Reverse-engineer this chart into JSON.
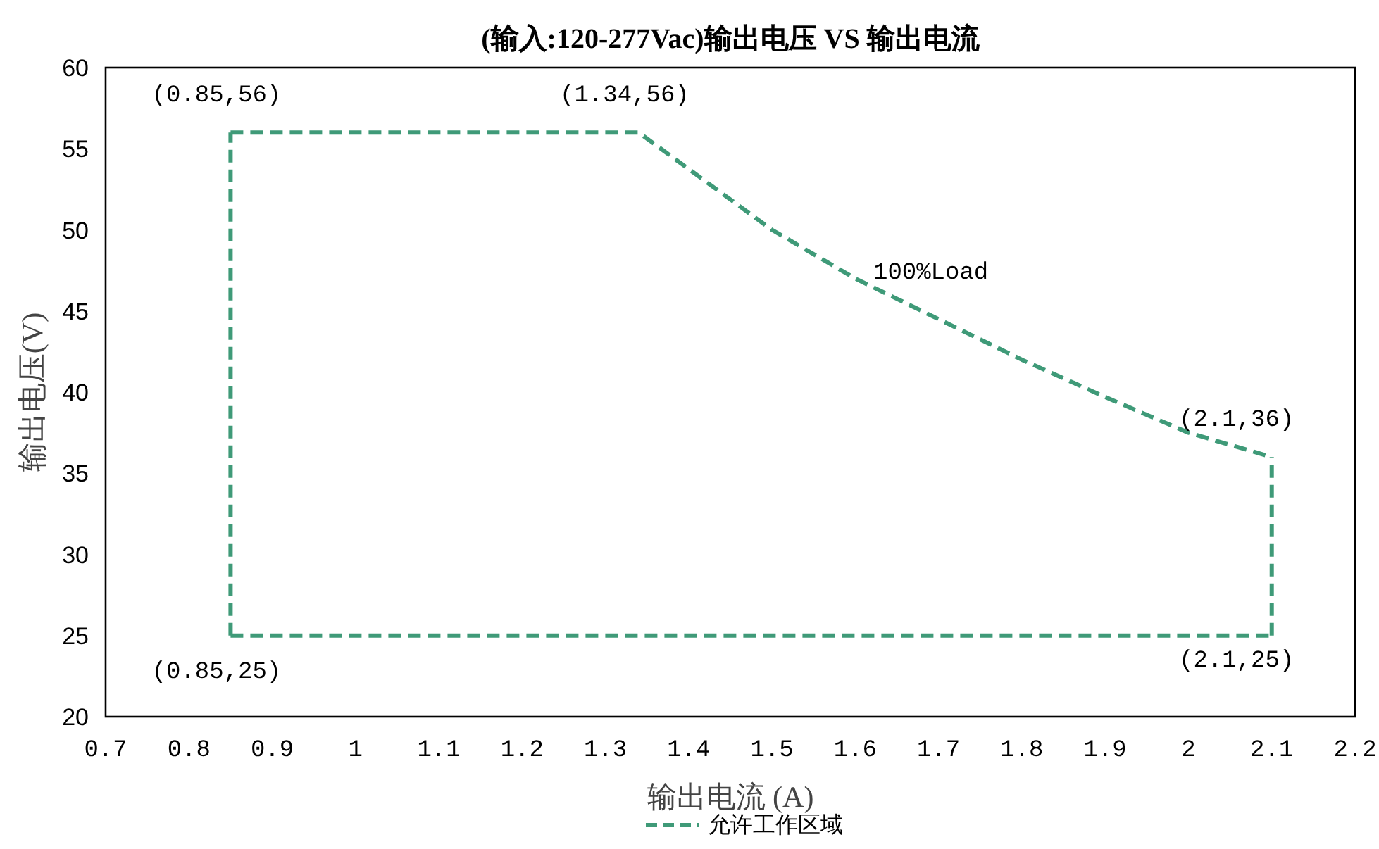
{
  "chart_data": {
    "type": "line",
    "title": "(输入:120-277Vac)输出电压 VS 输出电流",
    "xlabel": "输出电流 (A)",
    "ylabel": "输出电压(V)",
    "xlim": [
      0.7,
      2.2
    ],
    "xticks": [
      0.7,
      0.8,
      0.9,
      1,
      1.1,
      1.2,
      1.3,
      1.4,
      1.5,
      1.6,
      1.7,
      1.8,
      1.9,
      2,
      2.1,
      2.2
    ],
    "ylim": [
      20,
      60
    ],
    "yticks": [
      20,
      25,
      30,
      35,
      40,
      45,
      50,
      55,
      60
    ],
    "grid": false,
    "legend": "bottom",
    "line_style": "dashed",
    "marker": "none",
    "series": [
      {
        "name": "允许工作区域",
        "color": "#3f9a78",
        "x": [
          0.85,
          1.34,
          1.5,
          1.6,
          1.7,
          1.8,
          1.9,
          2.0,
          2.1
        ],
        "values": [
          56,
          56,
          50,
          47,
          44.5,
          42,
          39.7,
          37.5,
          36
        ]
      },
      {
        "color": "#3f9a78",
        "x": [
          0.85,
          2.1
        ],
        "values": [
          25,
          25
        ]
      },
      {
        "color": "#3f9a78",
        "x": [
          0.85,
          0.85
        ],
        "values": [
          25,
          56
        ]
      },
      {
        "color": "#3f9a78",
        "x": [
          2.1,
          2.1
        ],
        "values": [
          25,
          36
        ]
      }
    ],
    "annotations": [
      {
        "text": "(0.85,56)",
        "x": 0.85,
        "y": 56
      },
      {
        "text": "(1.34,56)",
        "x": 1.34,
        "y": 56
      },
      "100%Load",
      {
        "text": "(2.1,36)",
        "x": 2.1,
        "y": 36
      },
      {
        "text": "(0.85,25)",
        "x": 0.85,
        "y": 25
      },
      {
        "text": "(2.1,25)",
        "x": 2.1,
        "y": 25
      }
    ]
  }
}
